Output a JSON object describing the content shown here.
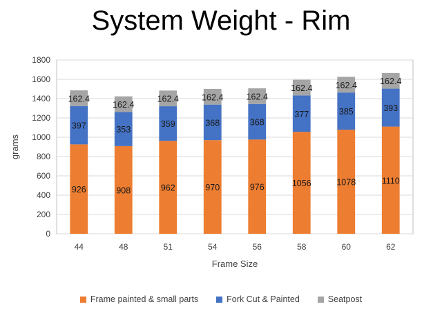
{
  "chart_data": {
    "type": "bar",
    "stacked": true,
    "title": "System Weight - Rim",
    "xlabel": "Frame Size",
    "ylabel": "grams",
    "ylim": [
      0,
      1800
    ],
    "yticks": [
      0,
      200,
      400,
      600,
      800,
      1000,
      1200,
      1400,
      1600,
      1800
    ],
    "grid": true,
    "legend_position": "bottom",
    "categories": [
      "44",
      "48",
      "51",
      "54",
      "56",
      "58",
      "60",
      "62"
    ],
    "series": [
      {
        "name": "Frame painted & small parts",
        "color": "#ED7D31",
        "values": [
          926,
          908,
          962,
          970,
          976,
          1056,
          1078,
          1110
        ]
      },
      {
        "name": "Fork Cut & Painted",
        "color": "#4472C4",
        "values": [
          397,
          353,
          359,
          368,
          368,
          377,
          385,
          393
        ]
      },
      {
        "name": "Seatpost",
        "color": "#A5A5A5",
        "values": [
          162.4,
          162.4,
          162.4,
          162.4,
          162.4,
          162.4,
          162.4,
          162.4
        ]
      }
    ]
  }
}
